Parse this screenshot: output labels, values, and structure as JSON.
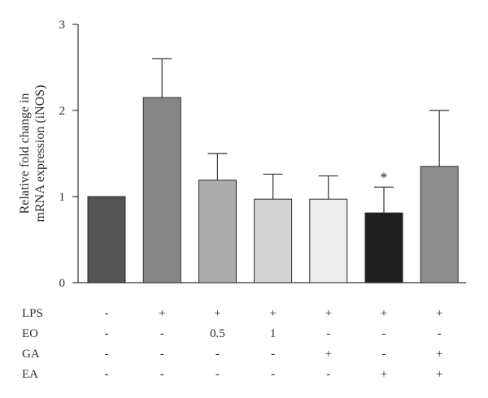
{
  "chart_data": {
    "type": "bar",
    "title": "",
    "xlabel": "",
    "ylabel_lines": [
      "Relative fold change in",
      "mRNA expression (iNOS)"
    ],
    "ylim": [
      0,
      3
    ],
    "yticks": [
      0,
      1,
      2,
      3
    ],
    "grid": false,
    "series": [
      {
        "values": [
          1.0,
          2.15,
          1.19,
          0.97,
          0.97,
          0.81,
          1.35
        ],
        "errors": [
          0,
          0.45,
          0.31,
          0.29,
          0.27,
          0.3,
          0.65
        ],
        "colors": [
          "#545454",
          "#868686",
          "#acacac",
          "#d4d4d4",
          "#ececec",
          "#1f1f1f",
          "#8e8e8e"
        ]
      }
    ],
    "annotations": [
      {
        "bar_index": 5,
        "text": "*"
      }
    ],
    "treatment_table": [
      {
        "label": "LPS",
        "cells": [
          "-",
          "+",
          "+",
          "+",
          "+",
          "+",
          "+"
        ]
      },
      {
        "label": "EO",
        "cells": [
          "-",
          "-",
          "0.5",
          "1",
          "-",
          "-",
          "-"
        ]
      },
      {
        "label": "GA",
        "cells": [
          "-",
          "-",
          "-",
          "-",
          "+",
          "-",
          "+"
        ]
      },
      {
        "label": "EA",
        "cells": [
          "-",
          "-",
          "-",
          "-",
          "-",
          "+",
          "+"
        ]
      }
    ]
  }
}
